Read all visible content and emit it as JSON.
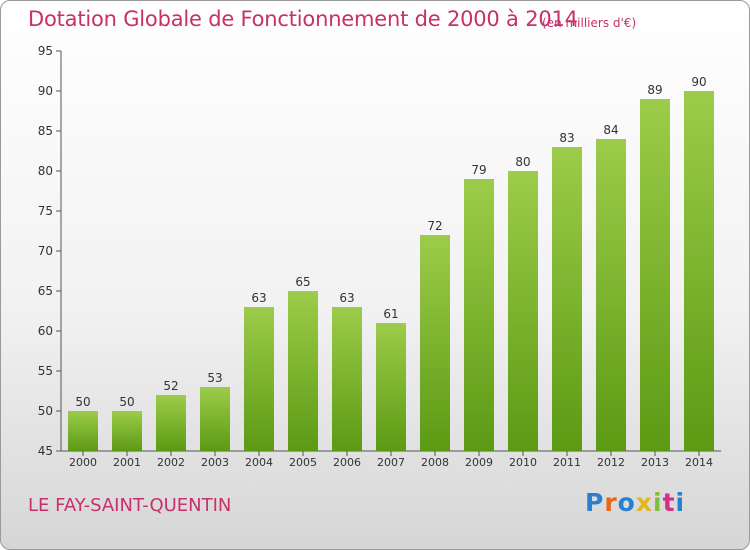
{
  "title": "Dotation Globale de Fonctionnement de 2000 à 2014",
  "subtitle": "(en milliers d'€)",
  "commune": "LE FAY-SAINT-QUENTIN",
  "logo": "Proxiti",
  "colors": {
    "title": "#c8306a",
    "bar_top": "#9ccc4a",
    "bar_bottom": "#5c9a14"
  },
  "chart_data": {
    "type": "bar",
    "title": "Dotation Globale de Fonctionnement de 2000 à 2014",
    "subtitle": "(en milliers d'€)",
    "categories": [
      "2000",
      "2001",
      "2002",
      "2003",
      "2004",
      "2005",
      "2006",
      "2007",
      "2008",
      "2009",
      "2010",
      "2011",
      "2012",
      "2013",
      "2014"
    ],
    "values": [
      50,
      50,
      52,
      53,
      63,
      65,
      63,
      61,
      72,
      79,
      80,
      83,
      84,
      89,
      90
    ],
    "ylim": [
      45,
      95
    ],
    "yticks": [
      45,
      50,
      55,
      60,
      65,
      70,
      75,
      80,
      85,
      90,
      95
    ],
    "grid": false,
    "data_labels": true
  }
}
